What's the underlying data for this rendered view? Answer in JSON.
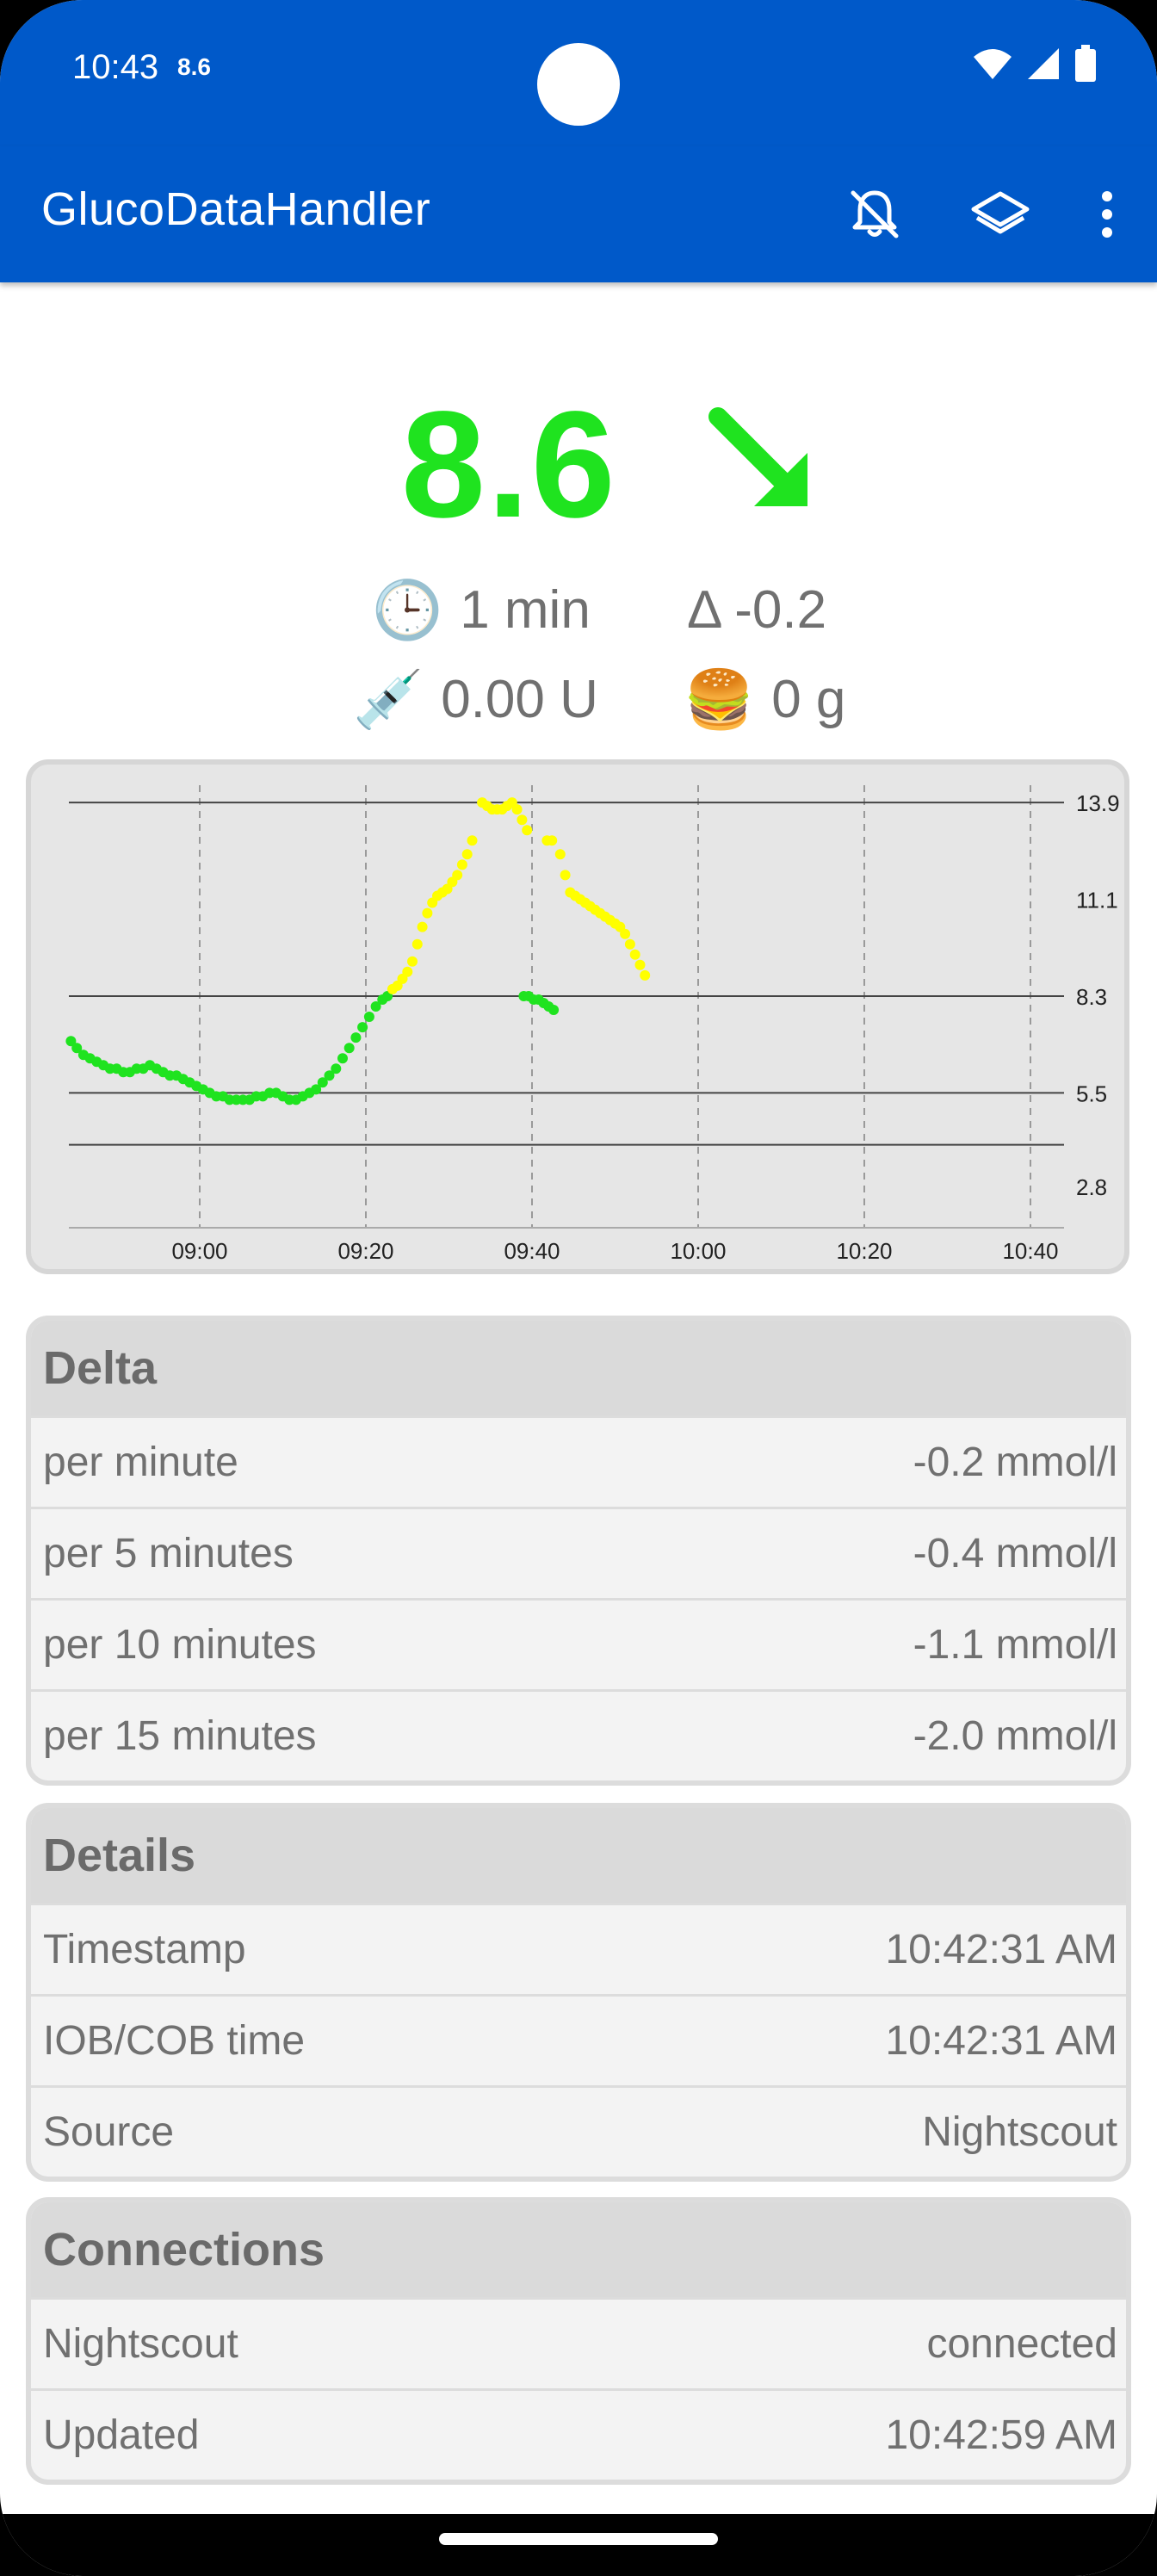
{
  "status_bar": {
    "time": "10:43",
    "glucose_mini": "8.6",
    "icons": [
      "wifi-icon",
      "signal-icon",
      "battery-icon"
    ]
  },
  "app_bar": {
    "title": "GlucoDataHandler",
    "actions": [
      "bell-off-icon",
      "layers-icon",
      "more-vert-icon"
    ]
  },
  "glucose": {
    "value": "8.6",
    "value_color": "#1fe31f",
    "trend_icon": "arrow-down-right-icon",
    "age_icon": "clock-icon",
    "age": "1 min",
    "delta": "Δ -0.2",
    "iob_icon": "syringe-icon",
    "iob": "0.00 U",
    "cob_icon": "burger-icon",
    "cob": "0 g"
  },
  "colors": {
    "accent": "#0059c9",
    "in_range": "#1fe31f",
    "high": "#ffff00"
  },
  "chart_data": {
    "type": "scatter",
    "x_ticks": [
      "09:00",
      "09:20",
      "09:40",
      "10:00",
      "10:20",
      "10:40"
    ],
    "y_ticks": [
      "13.9",
      "11.1",
      "8.3",
      "5.5",
      "2.8"
    ],
    "x_range_minutes": [
      -16,
      44
    ],
    "y_range": [
      1.6,
      14.4
    ],
    "reference_lines": [
      13.9,
      8.3,
      5.5,
      4.0
    ],
    "series": [
      {
        "color": "#1fe31f",
        "points": [
          [
            -15.5,
            7.0
          ],
          [
            -14.8,
            6.8
          ],
          [
            -14.0,
            6.6
          ],
          [
            -13.2,
            6.5
          ],
          [
            -12.4,
            6.4
          ],
          [
            -11.6,
            6.3
          ],
          [
            -10.8,
            6.2
          ],
          [
            -10.0,
            6.2
          ],
          [
            -9.2,
            6.1
          ],
          [
            -8.4,
            6.1
          ],
          [
            -7.6,
            6.2
          ],
          [
            -6.8,
            6.2
          ],
          [
            -6.0,
            6.3
          ],
          [
            -5.2,
            6.2
          ],
          [
            -4.4,
            6.1
          ],
          [
            -3.6,
            6.0
          ],
          [
            -2.8,
            6.0
          ],
          [
            -2.0,
            5.9
          ],
          [
            -1.2,
            5.8
          ],
          [
            -0.4,
            5.7
          ],
          [
            0.4,
            5.6
          ],
          [
            1.2,
            5.5
          ],
          [
            2.0,
            5.4
          ],
          [
            2.8,
            5.4
          ],
          [
            3.6,
            5.3
          ],
          [
            4.4,
            5.3
          ],
          [
            5.2,
            5.3
          ],
          [
            6.0,
            5.3
          ],
          [
            6.8,
            5.4
          ],
          [
            7.6,
            5.4
          ],
          [
            8.4,
            5.5
          ],
          [
            9.2,
            5.5
          ],
          [
            10.0,
            5.4
          ],
          [
            10.8,
            5.3
          ],
          [
            11.6,
            5.3
          ],
          [
            12.4,
            5.4
          ],
          [
            13.2,
            5.5
          ],
          [
            14.0,
            5.6
          ],
          [
            14.8,
            5.8
          ],
          [
            15.6,
            6.0
          ],
          [
            16.4,
            6.2
          ],
          [
            17.2,
            6.5
          ],
          [
            18.0,
            6.8
          ],
          [
            18.8,
            7.1
          ],
          [
            19.6,
            7.4
          ],
          [
            20.4,
            7.7
          ],
          [
            21.2,
            8.0
          ],
          [
            22.0,
            8.2
          ],
          [
            22.6,
            8.3
          ],
          [
            39.0,
            8.3
          ],
          [
            39.6,
            8.3
          ],
          [
            40.2,
            8.2
          ],
          [
            40.8,
            8.2
          ],
          [
            41.4,
            8.1
          ],
          [
            42.0,
            8.0
          ],
          [
            42.6,
            7.9
          ]
        ]
      },
      {
        "color": "#ffff00",
        "points": [
          [
            23.2,
            8.5
          ],
          [
            23.8,
            8.6
          ],
          [
            24.4,
            8.8
          ],
          [
            25.0,
            9.0
          ],
          [
            25.6,
            9.3
          ],
          [
            26.2,
            9.8
          ],
          [
            26.8,
            10.3
          ],
          [
            27.4,
            10.7
          ],
          [
            28.0,
            11.0
          ],
          [
            28.6,
            11.2
          ],
          [
            29.2,
            11.3
          ],
          [
            29.8,
            11.4
          ],
          [
            30.4,
            11.6
          ],
          [
            31.0,
            11.8
          ],
          [
            31.6,
            12.1
          ],
          [
            32.2,
            12.4
          ],
          [
            32.8,
            12.8
          ],
          [
            34.0,
            13.9
          ],
          [
            34.6,
            13.8
          ],
          [
            35.2,
            13.7
          ],
          [
            35.8,
            13.7
          ],
          [
            36.4,
            13.7
          ],
          [
            37.0,
            13.8
          ],
          [
            37.6,
            13.9
          ],
          [
            38.2,
            13.7
          ],
          [
            38.8,
            13.4
          ],
          [
            39.4,
            13.1
          ],
          [
            41.8,
            12.8
          ],
          [
            42.4,
            12.8
          ],
          [
            43.4,
            12.4
          ],
          [
            44.0,
            11.8
          ],
          [
            44.6,
            11.3
          ],
          [
            45.2,
            11.2
          ],
          [
            45.8,
            11.1
          ],
          [
            46.4,
            11.0
          ],
          [
            47.0,
            10.9
          ],
          [
            47.6,
            10.8
          ],
          [
            48.2,
            10.7
          ],
          [
            48.8,
            10.6
          ],
          [
            49.4,
            10.5
          ],
          [
            50.0,
            10.4
          ],
          [
            50.6,
            10.3
          ],
          [
            51.2,
            10.1
          ],
          [
            51.8,
            9.8
          ],
          [
            52.4,
            9.5
          ],
          [
            53.0,
            9.2
          ],
          [
            53.6,
            8.9
          ]
        ]
      }
    ]
  },
  "delta_card": {
    "title": "Delta",
    "rows": [
      {
        "label": "per minute",
        "value": "-0.2 mmol/l"
      },
      {
        "label": "per 5 minutes",
        "value": "-0.4 mmol/l"
      },
      {
        "label": "per 10 minutes",
        "value": "-1.1 mmol/l"
      },
      {
        "label": "per 15 minutes",
        "value": "-2.0 mmol/l"
      }
    ]
  },
  "details_card": {
    "title": "Details",
    "rows": [
      {
        "label": "Timestamp",
        "value": "10:42:31 AM"
      },
      {
        "label": "IOB/COB time",
        "value": "10:42:31 AM"
      },
      {
        "label": "Source",
        "value": "Nightscout"
      }
    ]
  },
  "connections_card": {
    "title": "Connections",
    "rows": [
      {
        "label": "Nightscout",
        "value": "connected"
      },
      {
        "label": "Updated",
        "value": "10:42:59 AM"
      }
    ]
  }
}
